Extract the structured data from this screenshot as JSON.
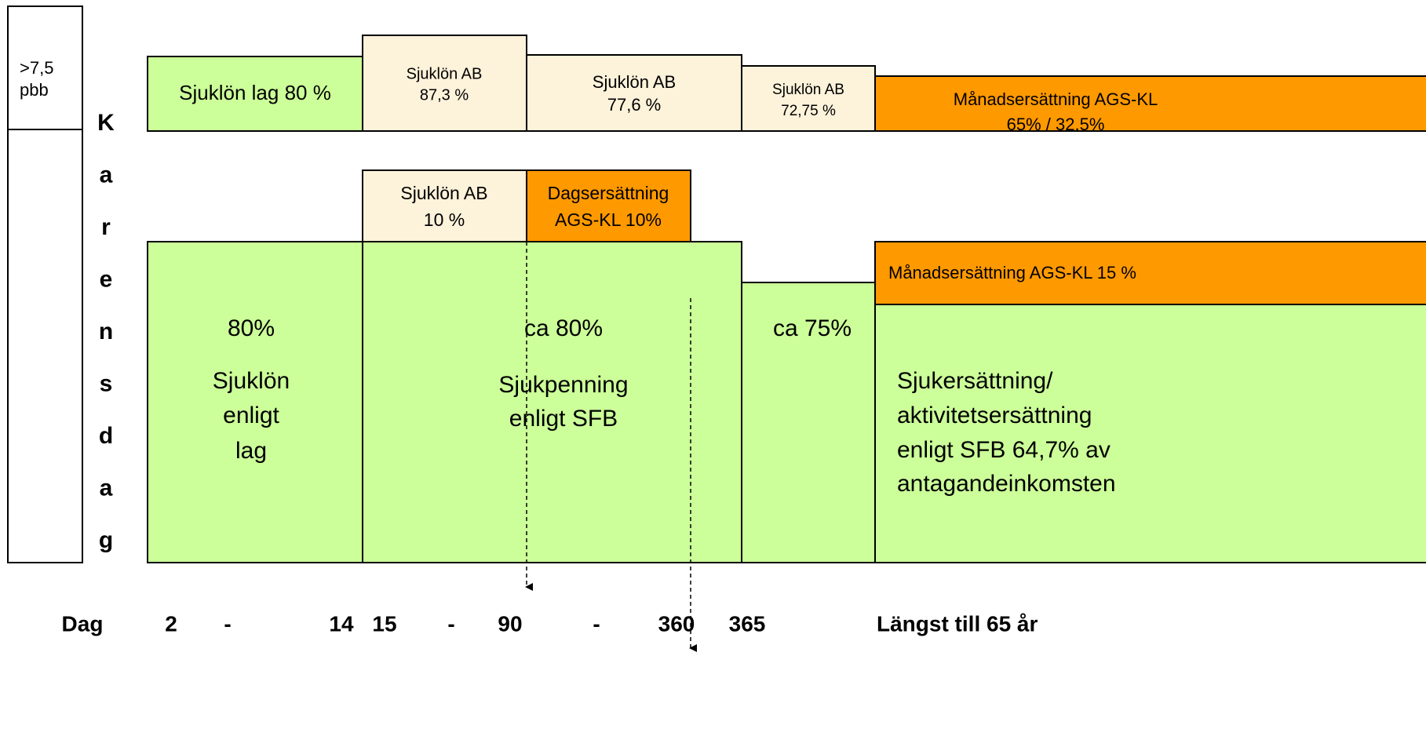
{
  "side_box": {
    "lines": [
      ">7,5",
      "pbb"
    ]
  },
  "vertical_label": [
    "K",
    "a",
    "r",
    "e",
    "n",
    "s",
    "d",
    "a",
    "g"
  ],
  "boxes": [
    {
      "lines": [
        "Sjuklön lag 80 %"
      ]
    },
    {
      "lines": [
        "Sjuklön AB",
        "87,3 %"
      ]
    },
    {
      "lines": [
        "Sjuklön AB",
        "77,6 %"
      ]
    },
    {
      "lines": [
        "Sjuklön AB",
        "72,75 %"
      ]
    },
    {
      "lines": [
        "Månadsersättning AGS-KL",
        "65% / 32,5%"
      ]
    },
    {
      "lines": [
        "Sjuklön AB",
        "10 %"
      ]
    },
    {
      "lines": [
        "Dagsersättning",
        "AGS-KL 10%"
      ]
    },
    {
      "lines": [
        "80%",
        "Sjuklön",
        "enligt",
        "lag"
      ]
    },
    {
      "lines": [
        "ca 80%",
        "Sjukpenning",
        "enligt SFB"
      ]
    },
    {
      "lines": [
        "ca 75%"
      ]
    },
    {
      "lines": [
        "Månadsersättning AGS-KL 15 %"
      ]
    },
    {
      "lines": [
        "Sjukersättning/",
        "aktivitetsersättning",
        "enligt SFB 64,7% av",
        "antagandeinkomsten"
      ]
    }
  ],
  "day_axis": [
    "Dag",
    "2",
    "-",
    "14",
    "15",
    "-",
    "90",
    "-",
    "360",
    "365",
    "Längst till 65 år"
  ]
}
